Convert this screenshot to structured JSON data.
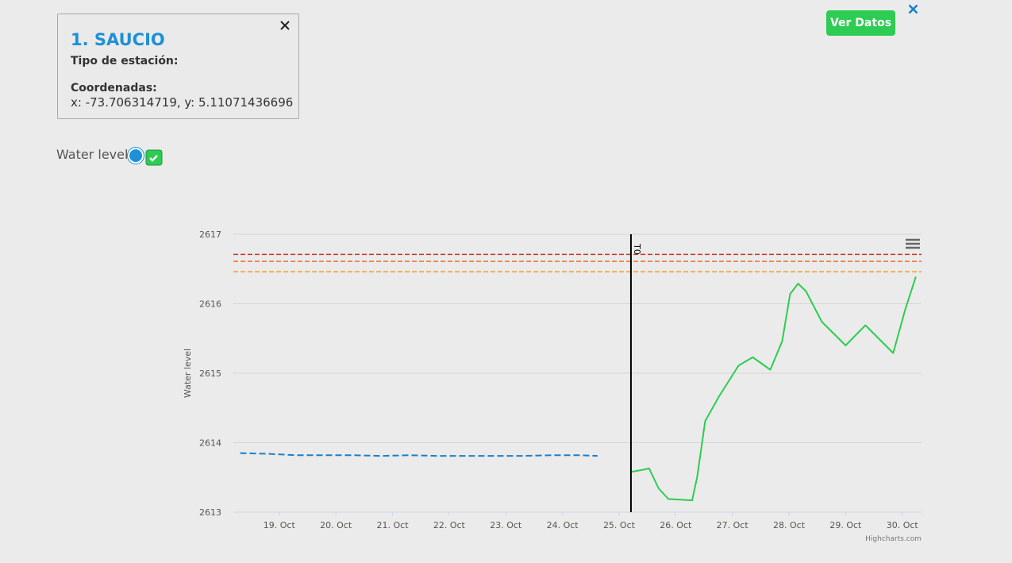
{
  "info_card": {
    "title": "1. SAUCIO",
    "type_label": "Tipo de estación:",
    "coords_label": "Coordenadas:",
    "coords": "x: -73.706314719, y: 5.11071436696"
  },
  "toggle": {
    "label": "Water level"
  },
  "button": {
    "label": "Ver Datos"
  },
  "chart_data": {
    "type": "line",
    "y_label": "Water level",
    "credit": "Highcharts.com",
    "xlim": [
      18.19,
      30.34
    ],
    "ylim": [
      2613,
      2617
    ],
    "xticks": [
      {
        "value": 19,
        "label": "19. Oct"
      },
      {
        "value": 20,
        "label": "20. Oct"
      },
      {
        "value": 21,
        "label": "21. Oct"
      },
      {
        "value": 22,
        "label": "22. Oct"
      },
      {
        "value": 23,
        "label": "23. Oct"
      },
      {
        "value": 24,
        "label": "24. Oct"
      },
      {
        "value": 25,
        "label": "25. Oct"
      },
      {
        "value": 26,
        "label": "26. Oct"
      },
      {
        "value": 27,
        "label": "27. Oct"
      },
      {
        "value": 28,
        "label": "28. Oct"
      },
      {
        "value": 29,
        "label": "29. Oct"
      },
      {
        "value": 30,
        "label": "30. Oct"
      }
    ],
    "yticks": [
      2613,
      2614,
      2615,
      2616,
      2617
    ],
    "grid": true,
    "series": [
      {
        "color": "#1a7fc9",
        "dashed": true,
        "x": [
          18.31,
          18.8,
          19.3,
          19.8,
          20.3,
          20.8,
          21.3,
          21.8,
          22.3,
          22.8,
          23.3,
          23.8,
          24.3,
          24.62
        ],
        "values": [
          2613.85,
          2613.84,
          2613.82,
          2613.82,
          2613.82,
          2613.81,
          2613.82,
          2613.81,
          2613.81,
          2613.81,
          2613.81,
          2613.82,
          2613.82,
          2613.81
        ]
      },
      {
        "color": "#2ecc50",
        "dashed": false,
        "x": [
          25.21,
          25.42,
          25.53,
          25.7,
          25.87,
          26.29,
          26.38,
          26.52,
          26.76,
          27.11,
          27.36,
          27.67,
          27.88,
          28.02,
          28.16,
          28.3,
          28.58,
          29.0,
          29.35,
          29.84,
          30.05,
          30.24
        ],
        "values": [
          2613.58,
          2613.61,
          2613.63,
          2613.34,
          2613.19,
          2613.17,
          2613.51,
          2614.31,
          2614.66,
          2615.11,
          2615.23,
          2615.05,
          2615.46,
          2616.14,
          2616.29,
          2616.18,
          2615.74,
          2615.4,
          2615.69,
          2615.29,
          2615.91,
          2616.39
        ]
      }
    ],
    "thresholds": [
      {
        "value": 2616.71,
        "color": "#c0392b"
      },
      {
        "value": 2616.61,
        "color": "#f07030"
      },
      {
        "value": 2616.46,
        "color": "#f0a020"
      }
    ],
    "marker_line": {
      "value": 25.21,
      "label": "T0"
    }
  }
}
